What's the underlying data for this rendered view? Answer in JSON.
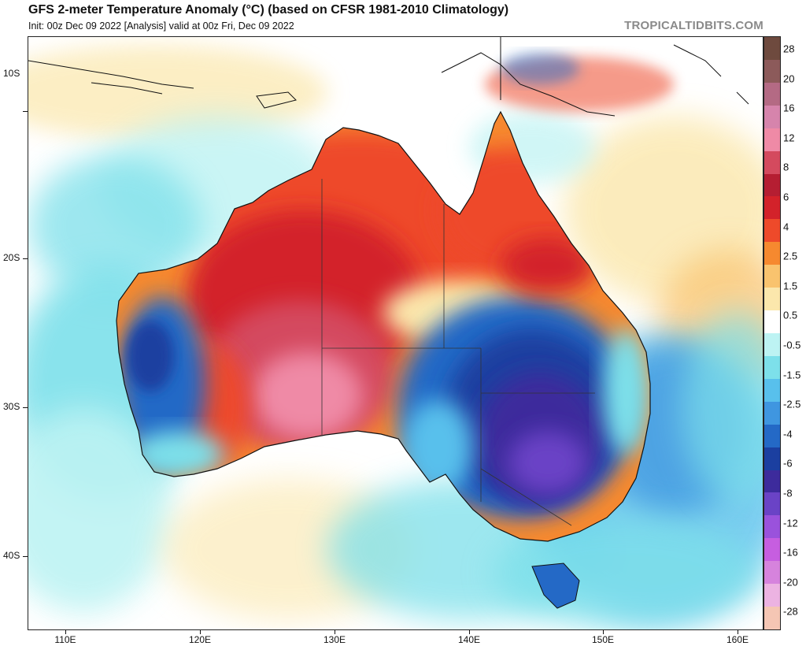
{
  "header": {
    "title": "GFS 2-meter Temperature Anomaly (°C) (based on CFSR 1981-2010 Climatology)",
    "subtitle": "Init: 00z Dec 09 2022   [Analysis]   valid at 00z Fri, Dec 09 2022",
    "brand": "TROPICALTIDBITS.COM"
  },
  "axes": {
    "lat_labels": [
      "10S",
      "20S",
      "30S",
      "40S"
    ],
    "lon_labels": [
      "110E",
      "120E",
      "130E",
      "140E",
      "150E",
      "160E"
    ]
  },
  "colorbar": {
    "labels": [
      "28",
      "20",
      "16",
      "12",
      "8",
      "6",
      "4",
      "2.5",
      "1.5",
      "0.5",
      "-0.5",
      "-1.5",
      "-2.5",
      "-4",
      "-6",
      "-8",
      "-12",
      "-16",
      "-20",
      "-28"
    ],
    "colors": [
      "#6e4a3e",
      "#8c5a5a",
      "#b46a84",
      "#d684ac",
      "#ef8aa6",
      "#d44a5e",
      "#b51e32",
      "#d3222a",
      "#ee4a2a",
      "#f6892f",
      "#f9c36e",
      "#fbe7ac",
      "#ffffff",
      "#bdf3f3",
      "#7de0ea",
      "#58c0ec",
      "#3f96e0",
      "#2469c6",
      "#1b3fa0",
      "#3d2b9c",
      "#6a43c6",
      "#9a52dc",
      "#c65ee0",
      "#d683dd",
      "#ecb3e2",
      "#f5c6b4"
    ]
  },
  "colors": {
    "background": "#ffffff",
    "neutral_ocean": "#ffffff",
    "cold_anomaly": "#1b3fa0",
    "warm_anomaly": "#d3222a"
  }
}
